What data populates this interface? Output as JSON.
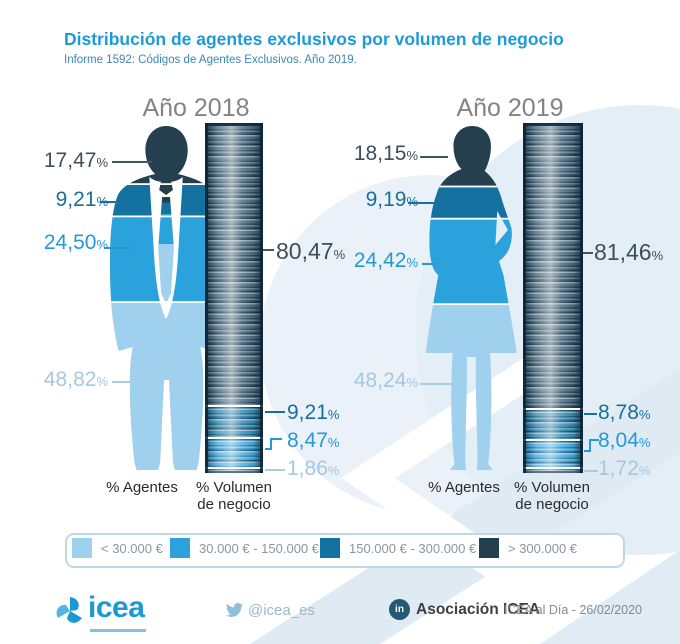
{
  "title": "Distribución de agentes exclusivos por volumen de negocio",
  "subtitle": "Informe 1592: Códigos de Agentes Exclusivos. Año 2019.",
  "percent_sign": "%",
  "axis": {
    "agents": "% Agentes",
    "volume_line1": "% Volumen",
    "volume_line2": "de negocio"
  },
  "legend": {
    "items": [
      {
        "label": "< 30.000 €",
        "color": "#9fd0ee"
      },
      {
        "label": "30.000 € - 150.000 €",
        "color": "#2ba2dc"
      },
      {
        "label": "150.000 € - 300.000 €",
        "color": "#1472a1"
      },
      {
        "label": "> 300.000 €",
        "color": "#24404e"
      }
    ]
  },
  "years": [
    {
      "label": "Año 2018",
      "agents": {
        "segments": [
          {
            "label": "17,47",
            "value": 17.47
          },
          {
            "label": "9,21",
            "value": 9.21
          },
          {
            "label": "24,50",
            "value": 24.5
          },
          {
            "label": "48,82",
            "value": 48.82
          }
        ]
      },
      "volume": {
        "segments": [
          {
            "label": "80,47",
            "value": 80.47
          },
          {
            "label": "9,21",
            "value": 9.21
          },
          {
            "label": "8,47",
            "value": 8.47
          },
          {
            "label": "1,86",
            "value": 1.86
          }
        ]
      }
    },
    {
      "label": "Año 2019",
      "agents": {
        "segments": [
          {
            "label": "18,15",
            "value": 18.15
          },
          {
            "label": "9,19",
            "value": 9.19
          },
          {
            "label": "24,42",
            "value": 24.42
          },
          {
            "label": "48,24",
            "value": 48.24
          }
        ]
      },
      "volume": {
        "segments": [
          {
            "label": "81,46",
            "value": 81.46
          },
          {
            "label": "8,78",
            "value": 8.78
          },
          {
            "label": "8,04",
            "value": 8.04
          },
          {
            "label": "1,72",
            "value": 1.72
          }
        ]
      }
    }
  ],
  "footer": {
    "logo_text": "icea",
    "twitter": "@icea_es",
    "linkedin_badge": "in",
    "linkedin": "Asociación ICEA",
    "edition": "ICEA al Día - 26/02/2020"
  },
  "colors": {
    "title": "#1d9bd8",
    "subtitle": "#3b86b8",
    "year_header": "#838383",
    "axis_text": "#2b2b2b",
    "legend_text": "#8a97a2",
    "legend_border": "#bcd8ea",
    "pct_dark": "#3c4f5b",
    "pct_teal": "#1a6e9c",
    "pct_bright": "#2499d6",
    "pct_light": "#a5c8e0",
    "stack_tints": [
      "#34596e",
      "#1d7dab",
      "#2fa3dd",
      "#a6d4ef"
    ],
    "logo_blue": "#1b99d5",
    "twitter_icon": "#8fbfd9",
    "linkedin_badge_bg": "#235a72",
    "footer_text": "#7c8c98"
  },
  "chart_data": [
    {
      "type": "bar",
      "title": "Año 2018",
      "categories": [
        "< 30.000 €",
        "30.000 € - 150.000 €",
        "150.000 € - 300.000 €",
        "> 300.000 €"
      ],
      "series": [
        {
          "name": "% Agentes",
          "values": [
            48.82,
            24.5,
            9.21,
            17.47
          ]
        },
        {
          "name": "% Volumen de negocio",
          "values": [
            1.86,
            8.47,
            9.21,
            80.47
          ]
        }
      ],
      "ylim": [
        0,
        100
      ],
      "legend_position": "bottom"
    },
    {
      "type": "bar",
      "title": "Año 2019",
      "categories": [
        "< 30.000 €",
        "30.000 € - 150.000 €",
        "150.000 € - 300.000 €",
        "> 300.000 €"
      ],
      "series": [
        {
          "name": "% Agentes",
          "values": [
            48.24,
            24.42,
            9.19,
            18.15
          ]
        },
        {
          "name": "% Volumen de negocio",
          "values": [
            1.72,
            8.04,
            8.78,
            81.46
          ]
        }
      ],
      "ylim": [
        0,
        100
      ],
      "legend_position": "bottom"
    }
  ]
}
